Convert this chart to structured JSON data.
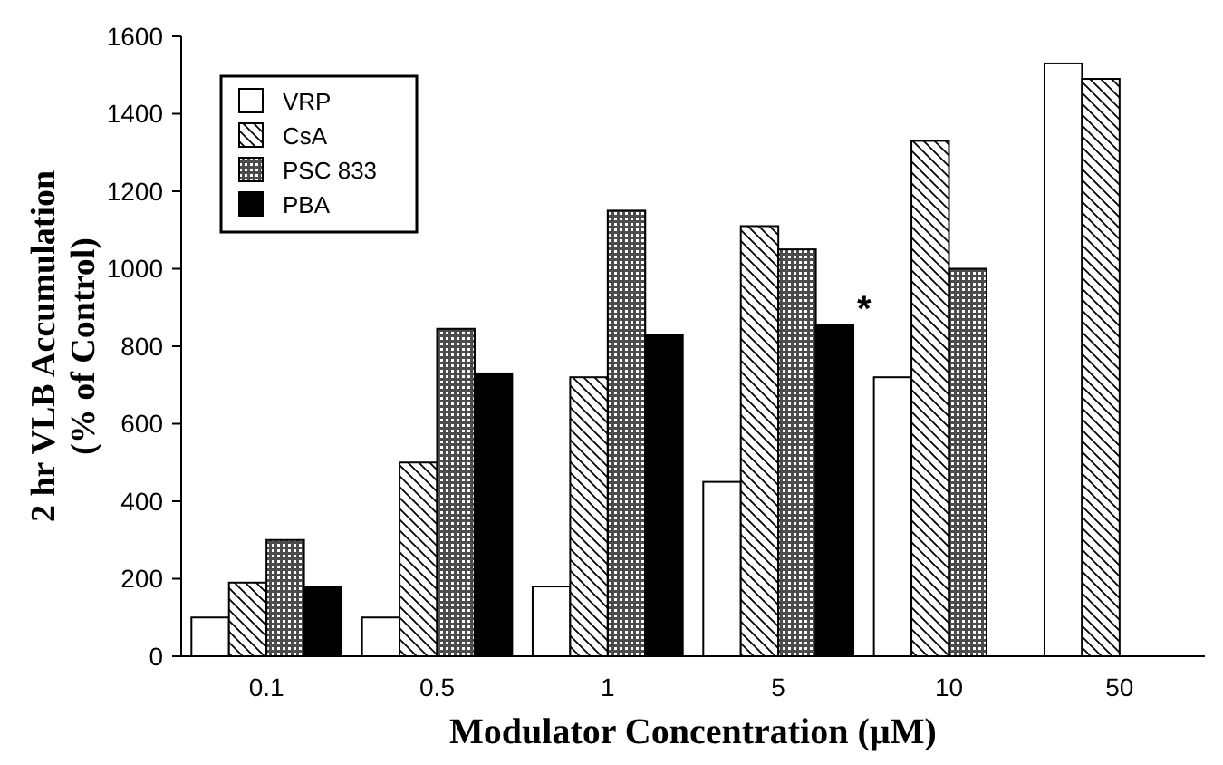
{
  "chart_data": {
    "type": "bar",
    "xlabel": "Modulator Concentration (µM)",
    "ylabel": "2 hr VLB Accumulation\n(% of Control)",
    "categories": [
      "0.1",
      "0.5",
      "1",
      "5",
      "10",
      "50"
    ],
    "series": [
      {
        "name": "VRP",
        "color": "#ffffff",
        "values": [
          100,
          100,
          180,
          450,
          720,
          1530
        ]
      },
      {
        "name": "CsA",
        "color": "#000000",
        "values": [
          190,
          500,
          720,
          1110,
          1330,
          1490
        ]
      },
      {
        "name": "PSC 833",
        "color": "#000000",
        "values": [
          300,
          845,
          1150,
          1050,
          1000,
          null
        ]
      },
      {
        "name": "PBA",
        "color": "#000000",
        "values": [
          180,
          730,
          830,
          855,
          null,
          null
        ]
      }
    ],
    "ylim": [
      0,
      1600
    ],
    "yticks": [
      0,
      200,
      400,
      600,
      800,
      1000,
      1200,
      1400,
      1600
    ],
    "annotations": [
      {
        "text": "*",
        "x": "5",
        "y": 855
      }
    ],
    "legend": "top left",
    "grid": false
  }
}
